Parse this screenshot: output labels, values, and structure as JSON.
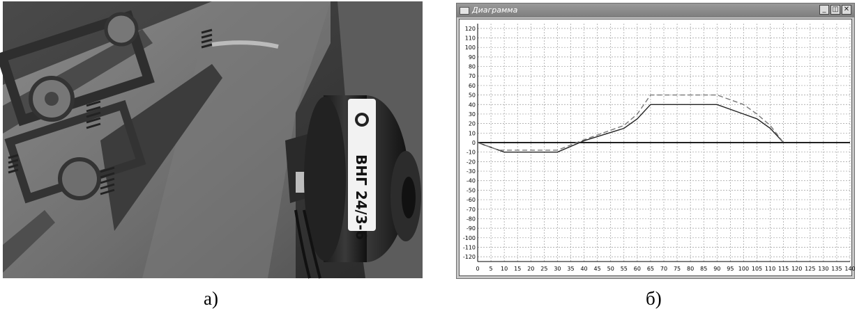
{
  "panel_a": {
    "caption": "а)"
  },
  "panel_b": {
    "caption": "б)",
    "window": {
      "title": "Диаграмма",
      "buttons": {
        "minimize": "_",
        "restore": "◫",
        "close": "✕"
      }
    }
  },
  "colors": {
    "grid": "#9a9a9a",
    "axis": "#000000",
    "series_solid": "#222222",
    "series_dashed": "#777777",
    "window_title": "#8a8a8a"
  },
  "chart_data": {
    "type": "line",
    "title": "",
    "xlabel": "",
    "ylabel": "",
    "xlim": [
      0,
      140
    ],
    "ylim": [
      -125,
      125
    ],
    "grid": true,
    "x_ticks": [
      0,
      5,
      10,
      15,
      20,
      25,
      30,
      35,
      40,
      45,
      50,
      55,
      60,
      65,
      70,
      75,
      80,
      85,
      90,
      95,
      100,
      105,
      110,
      115,
      120,
      125,
      130,
      135,
      140
    ],
    "x_tick_labels": [
      "0",
      "5",
      "10",
      "15",
      "20",
      "25",
      "30",
      "35",
      "40",
      "45",
      "50",
      "55",
      "60",
      "65",
      "70",
      "75",
      "80",
      "85",
      "90",
      "95",
      "100",
      "105",
      "110",
      "115",
      "120",
      "125",
      "130",
      "135",
      "140"
    ],
    "y_ticks": [
      120,
      110,
      100,
      90,
      80,
      70,
      60,
      50,
      40,
      30,
      20,
      10,
      0,
      -10,
      -20,
      -30,
      -40,
      -50,
      -60,
      -70,
      -80,
      -90,
      -100,
      -110,
      -120
    ],
    "y_tick_labels": [
      "120",
      "110",
      "100",
      "90",
      "80",
      "70",
      "60",
      "50",
      "40",
      "30",
      "20",
      "10",
      "0",
      "-10",
      "-20",
      "-30",
      "-40",
      "-50",
      "-60",
      "-70",
      "-80",
      "-90",
      "-100",
      "-110",
      "-120"
    ],
    "series": [
      {
        "style": "solid",
        "x": [
          0,
          10,
          30,
          40,
          55,
          60,
          65,
          90,
          100,
          105,
          110,
          115
        ],
        "y": [
          0,
          -10,
          -10,
          2,
          15,
          25,
          40,
          40,
          30,
          25,
          15,
          0
        ]
      },
      {
        "style": "dashed",
        "x": [
          0,
          8,
          30,
          40,
          55,
          60,
          65,
          90,
          100,
          105,
          110,
          115
        ],
        "y": [
          0,
          -8,
          -8,
          3,
          18,
          30,
          50,
          50,
          40,
          30,
          18,
          0
        ]
      }
    ]
  }
}
